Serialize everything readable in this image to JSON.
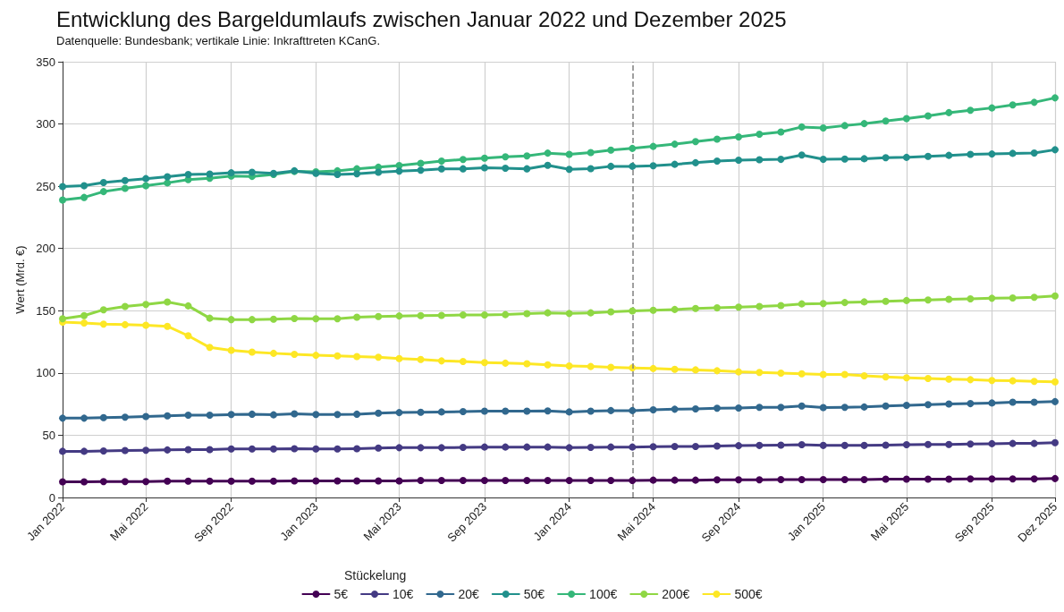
{
  "chart_data": {
    "type": "line",
    "title": "Entwicklung des Bargeldumlaufs zwischen Januar 2022 und Dezember 2025",
    "subtitle": "Datenquelle: Bundesbank; vertikale Linie: Inkrafttreten KCanG.",
    "ylabel": "Wert (Mrd. €)",
    "legend_title": "Stückelung",
    "x": [
      "2022-01",
      "2022-02",
      "2022-03",
      "2022-04",
      "2022-05",
      "2022-06",
      "2022-07",
      "2022-08",
      "2022-09",
      "2022-10",
      "2022-11",
      "2022-12",
      "2023-01",
      "2023-02",
      "2023-03",
      "2023-04",
      "2023-05",
      "2023-06",
      "2023-07",
      "2023-08",
      "2023-09",
      "2023-10",
      "2023-11",
      "2023-12",
      "2024-01",
      "2024-02",
      "2024-03",
      "2024-04",
      "2024-05",
      "2024-06",
      "2024-07",
      "2024-08",
      "2024-09",
      "2024-10",
      "2024-11",
      "2024-12",
      "2025-01",
      "2025-02",
      "2025-03",
      "2025-04",
      "2025-05",
      "2025-06",
      "2025-07",
      "2025-08",
      "2025-09",
      "2025-10",
      "2025-11",
      "2025-12"
    ],
    "series": [
      {
        "name": "5€",
        "color": "#440154",
        "values": [
          12.6,
          12.6,
          12.8,
          12.8,
          12.8,
          13.1,
          13.1,
          13.1,
          13.1,
          13.1,
          13.1,
          13.3,
          13.3,
          13.3,
          13.3,
          13.3,
          13.3,
          13.6,
          13.6,
          13.6,
          13.6,
          13.6,
          13.6,
          13.7,
          13.7,
          13.7,
          13.7,
          13.7,
          13.9,
          13.9,
          13.9,
          14.2,
          14.2,
          14.2,
          14.4,
          14.4,
          14.4,
          14.4,
          14.4,
          14.7,
          14.7,
          14.7,
          14.7,
          14.9,
          14.9,
          14.9,
          14.9,
          15.2
        ]
      },
      {
        "name": "10€",
        "color": "#443a83",
        "values": [
          37.1,
          37.1,
          37.4,
          37.7,
          37.9,
          38.2,
          38.5,
          38.5,
          39.0,
          39.0,
          39.0,
          39.2,
          39.0,
          39.0,
          39.2,
          39.7,
          40.0,
          40.0,
          40.0,
          40.2,
          40.5,
          40.5,
          40.5,
          40.5,
          40.0,
          40.2,
          40.5,
          40.5,
          40.8,
          41.0,
          41.0,
          41.3,
          41.6,
          41.8,
          42.1,
          42.4,
          41.8,
          41.8,
          41.8,
          42.1,
          42.4,
          42.6,
          42.6,
          42.9,
          43.2,
          43.4,
          43.4,
          44.0
        ]
      },
      {
        "name": "20€",
        "color": "#31688e",
        "values": [
          63.7,
          63.7,
          64.2,
          64.5,
          65.0,
          65.6,
          66.1,
          66.1,
          66.6,
          66.9,
          66.4,
          67.2,
          66.6,
          66.6,
          66.9,
          67.7,
          68.2,
          68.5,
          68.7,
          69.0,
          69.3,
          69.3,
          69.3,
          69.5,
          68.7,
          69.3,
          69.8,
          69.8,
          70.4,
          70.9,
          71.2,
          71.7,
          71.9,
          72.4,
          72.4,
          73.5,
          72.2,
          72.4,
          72.7,
          73.5,
          74.0,
          74.6,
          75.1,
          75.4,
          75.9,
          76.5,
          76.5,
          77.0
        ]
      },
      {
        "name": "50€",
        "color": "#21908c",
        "values": [
          249.8,
          250.4,
          253.0,
          254.6,
          256.1,
          257.7,
          259.5,
          259.8,
          260.8,
          261.3,
          260.3,
          262.4,
          260.3,
          259.5,
          260.0,
          261.3,
          262.1,
          262.9,
          264.0,
          264.0,
          264.8,
          264.5,
          264.0,
          266.8,
          263.6,
          264.1,
          266.0,
          266.0,
          266.5,
          267.6,
          268.9,
          270.2,
          271.0,
          271.3,
          271.6,
          275.1,
          271.6,
          271.8,
          272.1,
          272.9,
          273.2,
          274.0,
          274.8,
          275.6,
          275.9,
          276.4,
          276.7,
          279.3
        ]
      },
      {
        "name": "100€",
        "color": "#35b779",
        "values": [
          238.9,
          241.0,
          245.7,
          248.3,
          250.4,
          252.7,
          255.3,
          256.4,
          258.2,
          257.9,
          259.5,
          261.9,
          261.6,
          262.4,
          264.0,
          265.3,
          266.6,
          268.4,
          270.2,
          271.5,
          272.6,
          273.6,
          274.4,
          276.6,
          275.6,
          277.1,
          279.0,
          280.4,
          282.0,
          283.8,
          285.9,
          287.8,
          289.6,
          291.8,
          293.6,
          297.6,
          296.8,
          298.7,
          300.3,
          302.4,
          304.3,
          306.5,
          309.1,
          311.0,
          312.9,
          315.3,
          317.4,
          321.0
        ]
      },
      {
        "name": "200€",
        "color": "#8fd744",
        "values": [
          143.5,
          146.1,
          150.8,
          153.4,
          155.0,
          157.0,
          153.9,
          144.0,
          142.9,
          142.9,
          143.2,
          143.7,
          143.5,
          143.5,
          144.8,
          145.3,
          145.8,
          146.1,
          146.3,
          146.6,
          146.6,
          146.9,
          147.7,
          148.3,
          147.8,
          148.3,
          149.1,
          149.9,
          150.4,
          151.0,
          151.8,
          152.3,
          152.9,
          153.4,
          154.2,
          155.5,
          155.8,
          156.6,
          157.1,
          157.6,
          158.2,
          158.7,
          159.2,
          159.5,
          160.0,
          160.3,
          160.8,
          161.9
        ]
      },
      {
        "name": "500€",
        "color": "#fde725",
        "values": [
          140.9,
          140.1,
          139.3,
          138.8,
          138.3,
          137.5,
          129.9,
          120.5,
          118.2,
          116.8,
          115.8,
          115.0,
          114.2,
          113.7,
          113.2,
          112.6,
          111.6,
          110.8,
          109.7,
          109.2,
          108.4,
          107.9,
          107.4,
          106.5,
          105.7,
          105.2,
          104.6,
          104.1,
          103.6,
          103.0,
          102.5,
          101.8,
          100.9,
          100.4,
          99.9,
          99.3,
          98.8,
          98.8,
          97.7,
          96.9,
          96.1,
          95.6,
          95.1,
          94.6,
          94.0,
          93.7,
          93.2,
          92.9
        ]
      }
    ],
    "xlim": [
      "2022-01",
      "2025-12"
    ],
    "xticks": [
      {
        "value": "2022-01",
        "label": "Jan 2022"
      },
      {
        "value": "2022-05",
        "label": "Mai 2022"
      },
      {
        "value": "2022-09",
        "label": "Sep 2022"
      },
      {
        "value": "2023-01",
        "label": "Jan 2023"
      },
      {
        "value": "2023-05",
        "label": "Mai 2023"
      },
      {
        "value": "2023-09",
        "label": "Sep 2023"
      },
      {
        "value": "2024-01",
        "label": "Jan 2024"
      },
      {
        "value": "2024-05",
        "label": "Mai 2024"
      },
      {
        "value": "2024-09",
        "label": "Sep 2024"
      },
      {
        "value": "2025-01",
        "label": "Jan 2025"
      },
      {
        "value": "2025-05",
        "label": "Mai 2025"
      },
      {
        "value": "2025-09",
        "label": "Sep 2025"
      },
      {
        "value": "2025-12",
        "label": "Dez 2025"
      }
    ],
    "ylim": [
      0,
      350
    ],
    "yticks": [
      0,
      50,
      100,
      150,
      200,
      250,
      300,
      350
    ],
    "ref_lines": [
      {
        "axis": "x",
        "value": "2024-04",
        "color": "#808080",
        "line_style": "dashed"
      }
    ],
    "grid": true,
    "legend": "bottom",
    "marker": "circle",
    "line_style": "solid"
  }
}
